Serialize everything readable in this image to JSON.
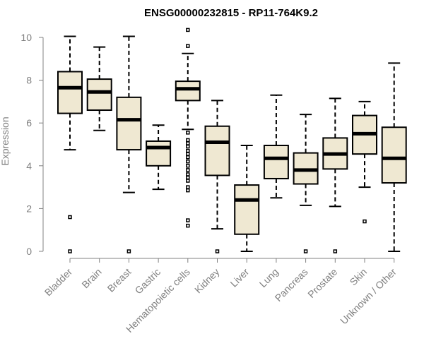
{
  "chart_data": {
    "type": "boxplot",
    "title": "ENSG00000232815 - RP11-764K9.2",
    "xlabel": "",
    "ylabel": "Expression",
    "ylim": [
      0,
      10.4
    ],
    "yticks": [
      0,
      2,
      4,
      6,
      8,
      10
    ],
    "colors": {
      "box_fill": "#efe8d2",
      "box_stroke": "#000000",
      "axis": "#808080"
    },
    "groups": [
      {
        "label": "Bladder",
        "min": 4.75,
        "q1": 6.45,
        "median": 7.65,
        "q3": 8.4,
        "max": 10.05,
        "outliers": [
          1.6,
          0.0
        ]
      },
      {
        "label": "Brain",
        "min": 5.65,
        "q1": 6.6,
        "median": 7.45,
        "q3": 8.05,
        "max": 9.55,
        "outliers": []
      },
      {
        "label": "Breast",
        "min": 2.75,
        "q1": 4.75,
        "median": 6.15,
        "q3": 7.2,
        "max": 10.05,
        "outliers": [
          0.0
        ]
      },
      {
        "label": "Gastric",
        "min": 2.9,
        "q1": 4.0,
        "median": 4.85,
        "q3": 5.15,
        "max": 5.9,
        "outliers": []
      },
      {
        "label": "Hematopoietic cells",
        "min": 5.7,
        "q1": 7.05,
        "median": 7.6,
        "q3": 7.95,
        "max": 9.25,
        "outliers": [
          10.35,
          9.6,
          5.55,
          5.2,
          5.05,
          4.9,
          4.7,
          4.55,
          4.4,
          4.2,
          4.0,
          3.8,
          3.6,
          3.45,
          3.3,
          3.0,
          2.85,
          1.45,
          1.2
        ]
      },
      {
        "label": "Kidney",
        "min": 1.05,
        "q1": 3.55,
        "median": 5.1,
        "q3": 5.85,
        "max": 7.05,
        "outliers": [
          0.0
        ]
      },
      {
        "label": "Liver",
        "min": 0.0,
        "q1": 0.8,
        "median": 2.4,
        "q3": 3.1,
        "max": 4.95,
        "outliers": []
      },
      {
        "label": "Lung",
        "min": 2.5,
        "q1": 3.4,
        "median": 4.35,
        "q3": 4.95,
        "max": 7.3,
        "outliers": []
      },
      {
        "label": "Pancreas",
        "min": 2.15,
        "q1": 3.15,
        "median": 3.8,
        "q3": 4.6,
        "max": 6.4,
        "outliers": [
          0.0
        ]
      },
      {
        "label": "Prostate",
        "min": 2.1,
        "q1": 3.85,
        "median": 4.55,
        "q3": 5.3,
        "max": 7.15,
        "outliers": [
          0.0
        ]
      },
      {
        "label": "Skin",
        "min": 3.0,
        "q1": 4.55,
        "median": 5.5,
        "q3": 6.35,
        "max": 7.0,
        "outliers": [
          1.4
        ]
      },
      {
        "label": "Unknown / Other",
        "min": 0.0,
        "q1": 3.2,
        "median": 4.35,
        "q3": 5.8,
        "max": 8.8,
        "outliers": []
      }
    ]
  }
}
